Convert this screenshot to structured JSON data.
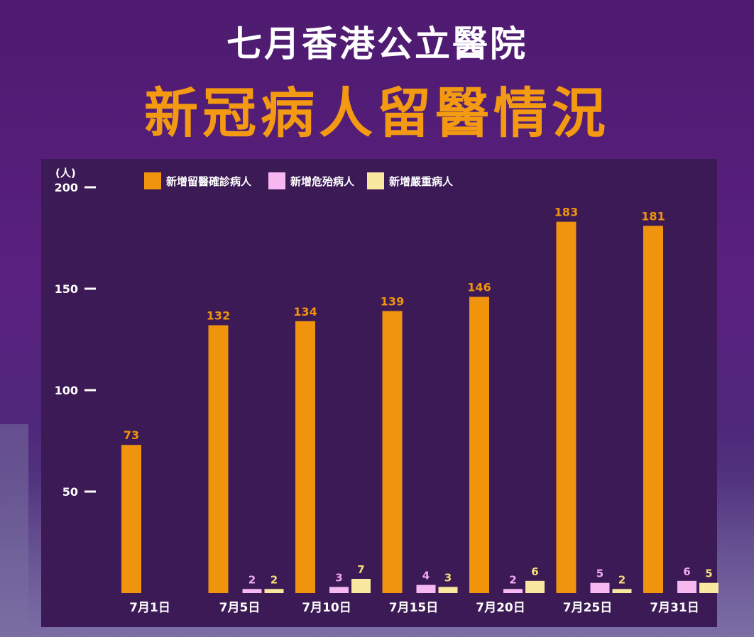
{
  "title_line1": "七月香港公立醫院",
  "title_line2": "新冠病人留醫情況",
  "colors": {
    "orange": "#f0940e",
    "pink": "#f7b8f2",
    "yellow": "#f9e8a0"
  },
  "chart_data": {
    "type": "bar",
    "title": "七月香港公立醫院 新冠病人留醫情況",
    "ylabel": "(人)",
    "xlabel": "",
    "ylim": [
      0,
      200
    ],
    "yticks": [
      50,
      100,
      150,
      200
    ],
    "categories": [
      "7月1日",
      "7月5日",
      "7月10日",
      "7月15日",
      "7月20日",
      "7月25日",
      "7月31日"
    ],
    "legend_position": "top",
    "series": [
      {
        "name": "新增留醫確診病人",
        "color": "#f0940e",
        "values": [
          73,
          132,
          134,
          139,
          146,
          183,
          181
        ]
      },
      {
        "name": "新增危殆病人",
        "color": "#f7b8f2",
        "values": [
          null,
          2,
          3,
          4,
          2,
          5,
          6
        ]
      },
      {
        "name": "新增嚴重病人",
        "color": "#f9e8a0",
        "values": [
          null,
          2,
          7,
          3,
          6,
          2,
          5
        ]
      }
    ]
  }
}
